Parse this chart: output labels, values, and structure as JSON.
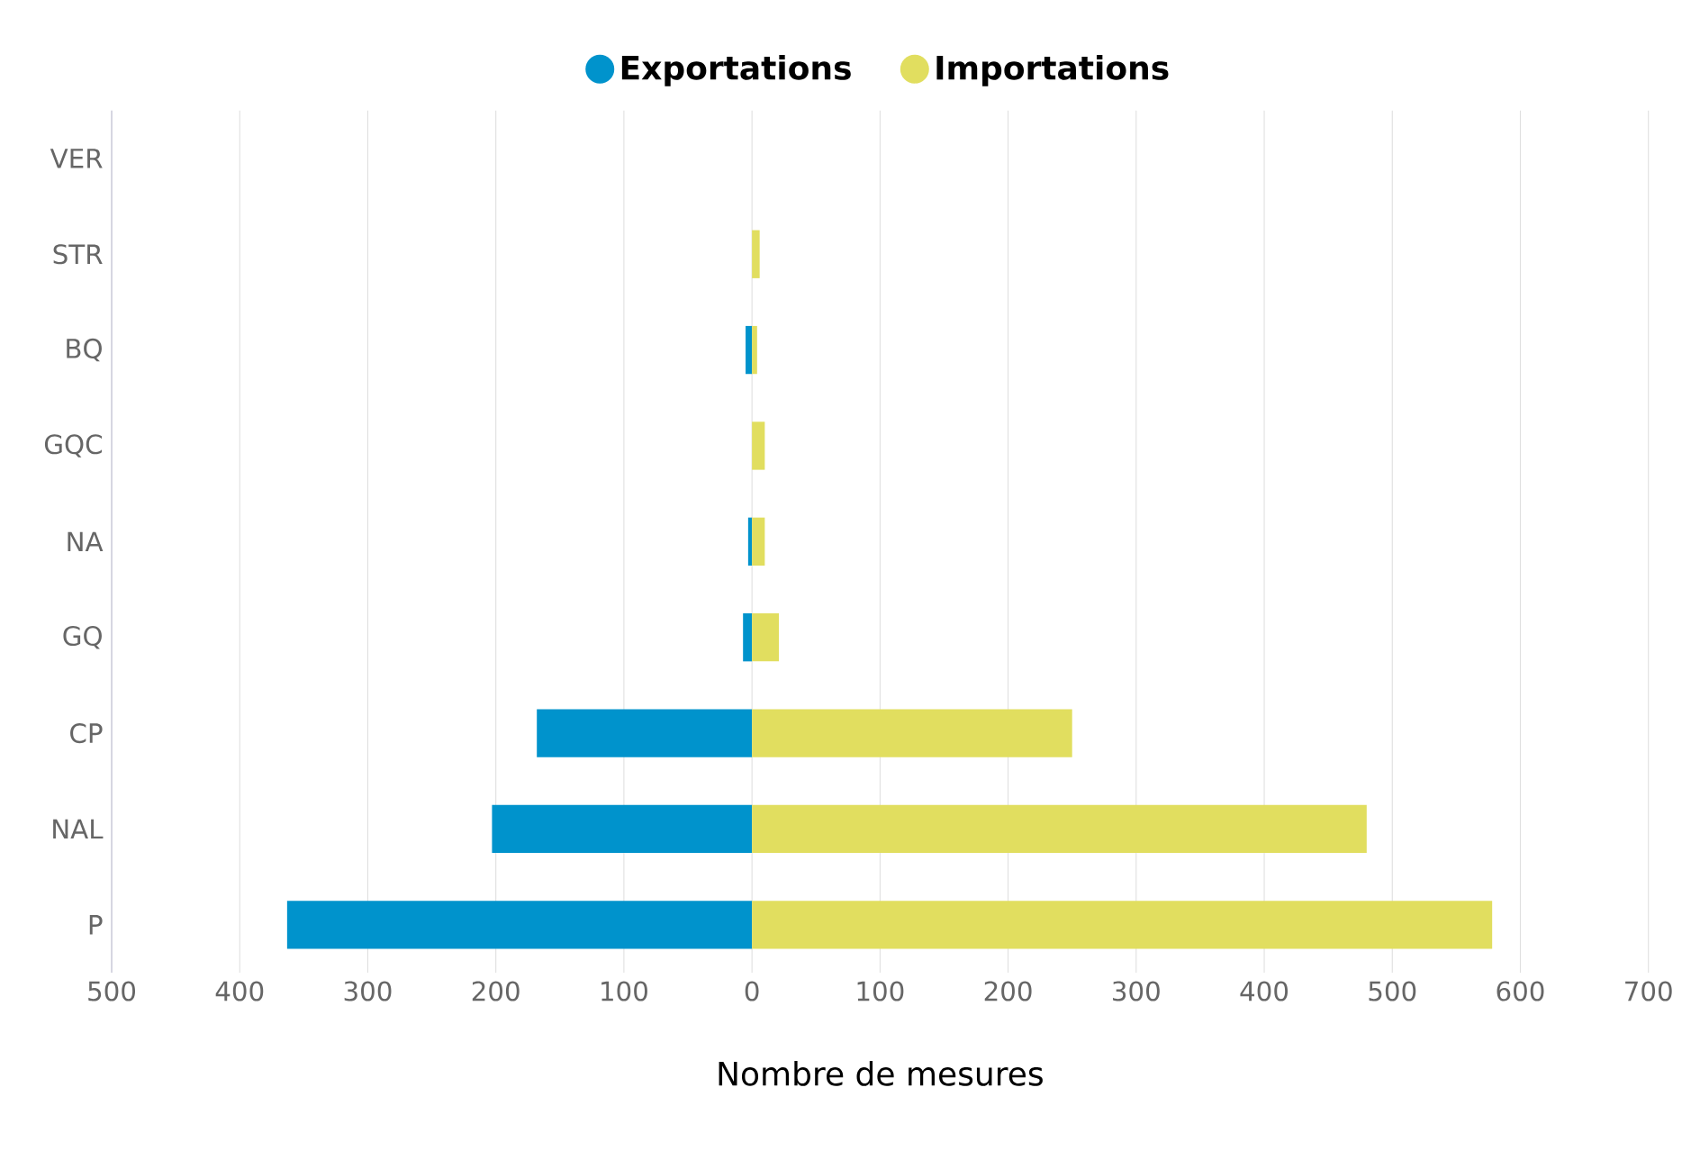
{
  "chart_data": {
    "type": "bar",
    "orientation": "horizontal",
    "categories": [
      "VER",
      "STR",
      "BQ",
      "GQC",
      "NA",
      "GQ",
      "CP",
      "NAL",
      "P"
    ],
    "series": [
      {
        "name": "Exportations",
        "color": "#0093cc",
        "values": [
          0,
          0,
          -5,
          0,
          -3,
          -7,
          -168,
          -203,
          -363
        ]
      },
      {
        "name": "Importations",
        "color": "#e1de5f",
        "values": [
          0,
          6,
          4,
          10,
          10,
          21,
          250,
          480,
          578
        ]
      }
    ],
    "xlabel": "Nombre de mesures",
    "xlim": [
      -500,
      700
    ],
    "xticks": [
      {
        "value": -500,
        "label": "500"
      },
      {
        "value": -400,
        "label": "400"
      },
      {
        "value": -300,
        "label": "300"
      },
      {
        "value": -200,
        "label": "200"
      },
      {
        "value": -100,
        "label": "100"
      },
      0,
      100,
      200,
      300,
      400,
      500,
      600,
      700
    ],
    "grid": "x",
    "legend": "top",
    "stacked": true
  }
}
